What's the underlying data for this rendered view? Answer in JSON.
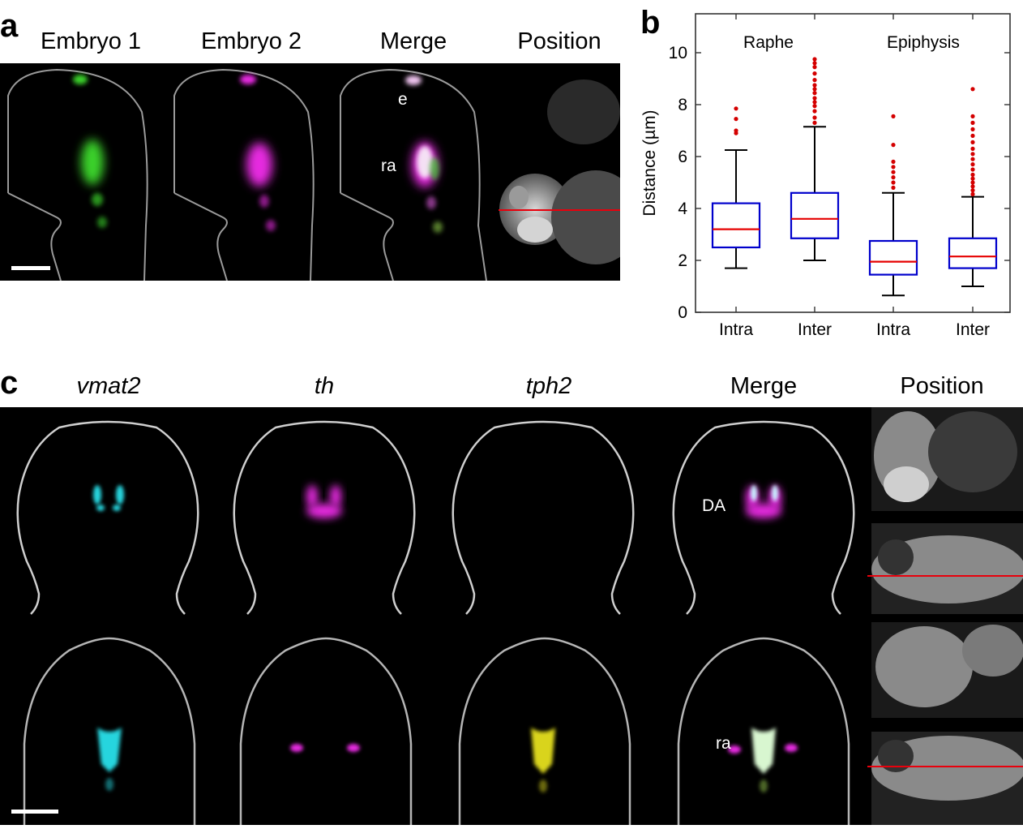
{
  "panel_a": {
    "letter": "a",
    "titles": [
      "Embryo 1",
      "Embryo 2",
      "Merge",
      "Position"
    ],
    "labels": {
      "epiphysis": "e",
      "raphe": "ra"
    }
  },
  "panel_b": {
    "letter": "b"
  },
  "panel_c": {
    "letter": "c",
    "titles": [
      "vmat2",
      "th",
      "tph2",
      "Merge",
      "Position"
    ],
    "labels": {
      "dopaminergic": "DA",
      "raphe": "ra"
    }
  },
  "colors": {
    "green": "#3ad12a",
    "magenta": "#e62ce0",
    "cyan": "#25d5de",
    "yellow": "#d9d41a",
    "box": "#0000cc",
    "median": "#e60000",
    "outlier": "#d40000",
    "position_line": "#e8000c"
  },
  "chart_data": {
    "type": "box",
    "group_labels": [
      "Raphe",
      "Epiphysis"
    ],
    "categories": [
      "Intra",
      "Inter",
      "Intra",
      "Inter"
    ],
    "ylabel": "Distance (µm)",
    "ylim": [
      0,
      11.5
    ],
    "yticks": [
      0,
      2,
      4,
      6,
      8,
      10
    ],
    "grid": false,
    "boxes": [
      {
        "group": "Raphe",
        "category": "Intra",
        "whisker_low": 1.7,
        "q1": 2.5,
        "median": 3.2,
        "q3": 4.2,
        "whisker_high": 6.25,
        "outliers": [
          6.9,
          7.0,
          7.45,
          7.85
        ]
      },
      {
        "group": "Raphe",
        "category": "Inter",
        "whisker_low": 2.0,
        "q1": 2.85,
        "median": 3.6,
        "q3": 4.6,
        "whisker_high": 7.15,
        "outliers": [
          7.3,
          7.5,
          7.75,
          7.95,
          8.1,
          8.25,
          8.45,
          8.6,
          8.75,
          8.95,
          9.2,
          9.45,
          9.6,
          9.75
        ]
      },
      {
        "group": "Epiphysis",
        "category": "Intra",
        "whisker_low": 0.65,
        "q1": 1.45,
        "median": 1.95,
        "q3": 2.75,
        "whisker_high": 4.6,
        "outliers": [
          4.8,
          5.0,
          5.2,
          5.4,
          5.6,
          5.8,
          6.45,
          7.55
        ]
      },
      {
        "group": "Epiphysis",
        "category": "Inter",
        "whisker_low": 1.0,
        "q1": 1.7,
        "median": 2.15,
        "q3": 2.85,
        "whisker_high": 4.45,
        "outliers": [
          4.55,
          4.7,
          4.85,
          5.0,
          5.15,
          5.3,
          5.5,
          5.7,
          5.9,
          6.1,
          6.3,
          6.55,
          6.8,
          7.05,
          7.3,
          7.55,
          8.6
        ]
      }
    ]
  }
}
